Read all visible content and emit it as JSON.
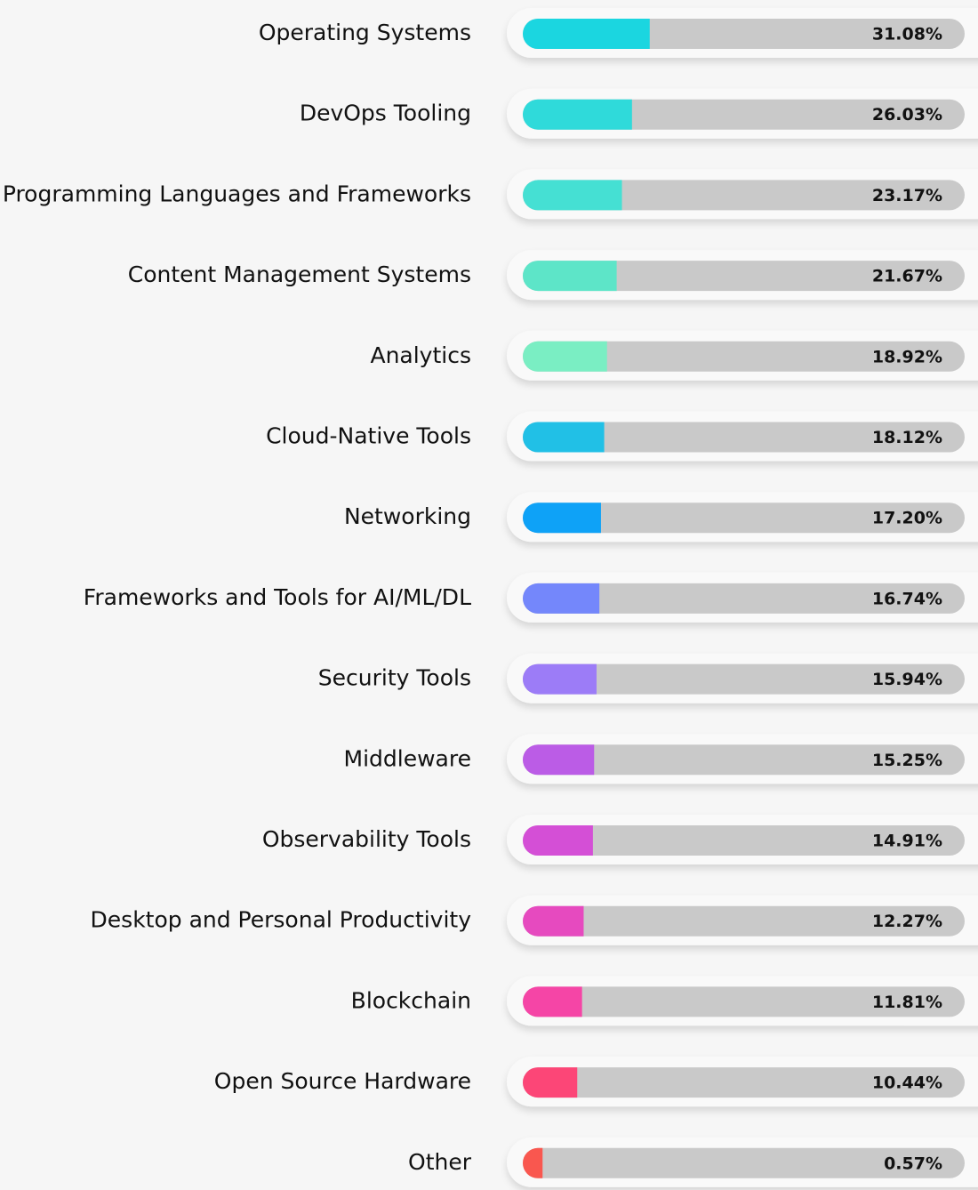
{
  "chart_data": {
    "type": "bar",
    "orientation": "horizontal",
    "categories": [
      "Operating Systems",
      "DevOps Tooling",
      "Programming Languages and Frameworks",
      "Content Management Systems",
      "Analytics",
      "Cloud-Native Tools",
      "Networking",
      "Frameworks and Tools for AI/ML/DL",
      "Security Tools",
      "Middleware",
      "Observability Tools",
      "Desktop and Personal Productivity",
      "Blockchain",
      "Open Source Hardware",
      "Other"
    ],
    "values": [
      31.08,
      26.03,
      23.17,
      21.67,
      18.92,
      18.12,
      17.2,
      16.74,
      15.94,
      15.25,
      14.91,
      12.27,
      11.81,
      10.44,
      0.57
    ],
    "value_labels": [
      "31.08%",
      "26.03%",
      "23.17%",
      "21.67%",
      "18.92%",
      "18.12%",
      "17.20%",
      "16.74%",
      "15.94%",
      "15.25%",
      "14.91%",
      "12.27%",
      "11.81%",
      "10.44%",
      "0.57%"
    ],
    "colors": [
      "#1bd6e0",
      "#2fdada",
      "#45e0d3",
      "#5de5c8",
      "#7aeec3",
      "#21c0e6",
      "#0ea2f7",
      "#7487fb",
      "#9c7cf7",
      "#bb5ce6",
      "#d44fd6",
      "#e64abf",
      "#f545a6",
      "#fc4677",
      "#f9574f"
    ]
  }
}
